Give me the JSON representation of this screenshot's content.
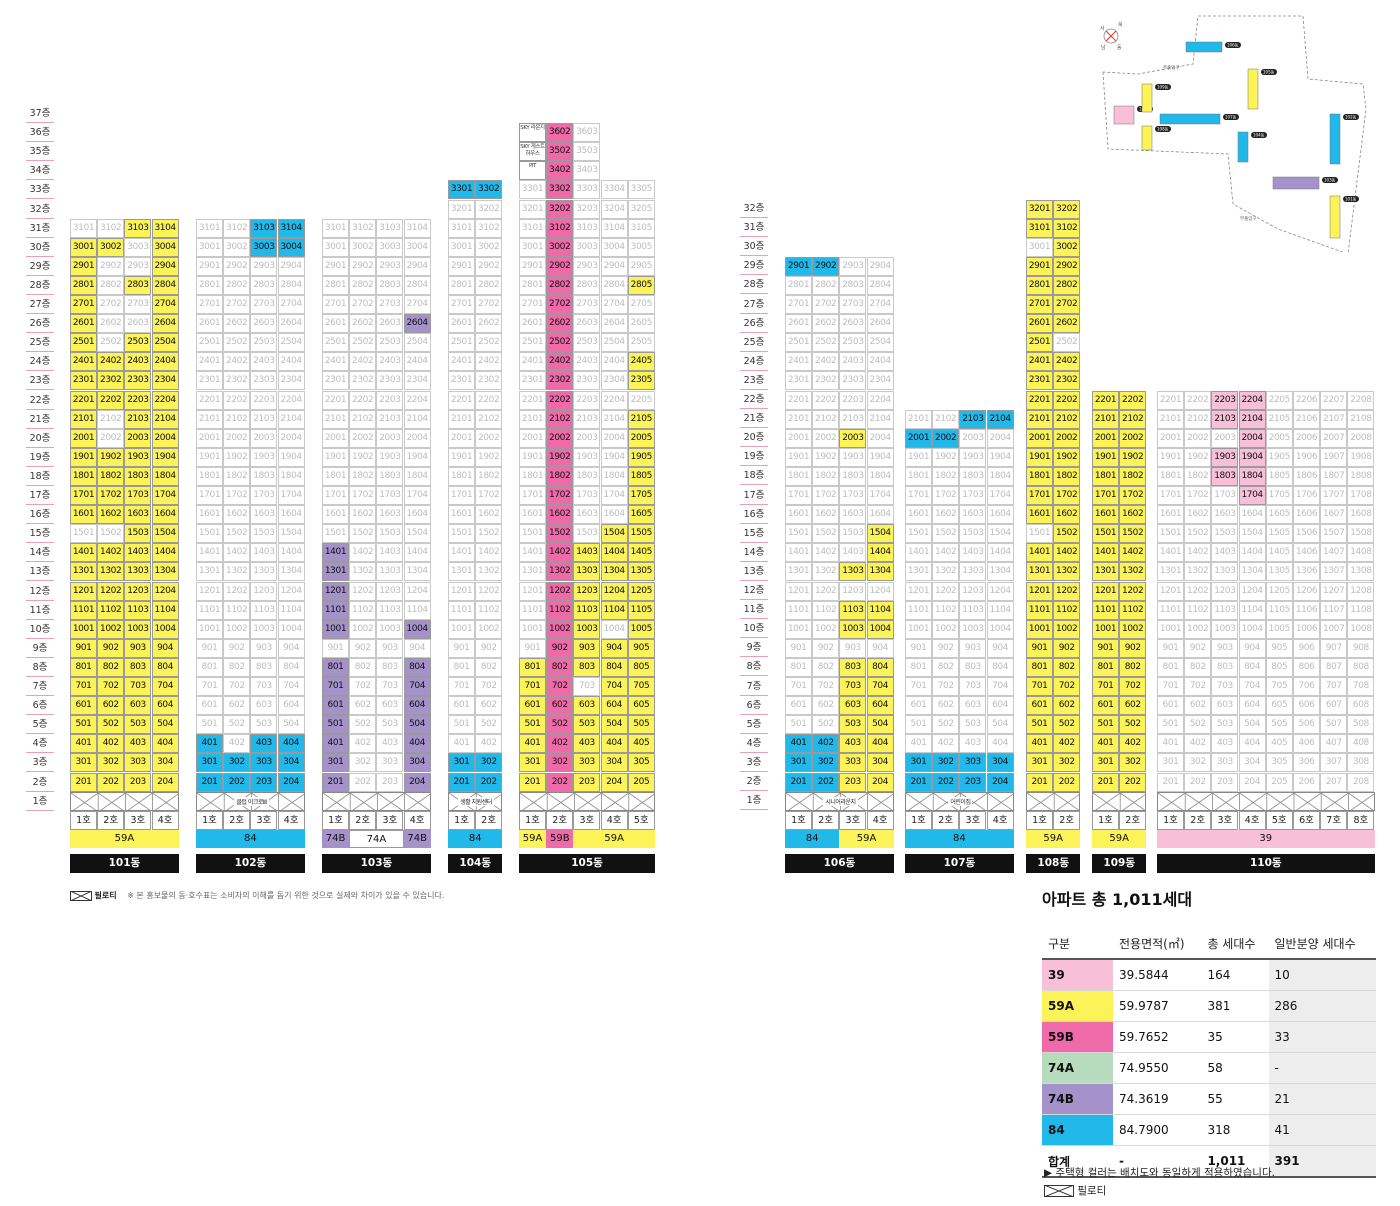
{
  "colors": {
    "39": "#f7bfd8",
    "59A": "#fbf357",
    "59B": "#ef6aa9",
    "74A": "#b6dcbd",
    "74B": "#a592cb",
    "84": "#21b9ea"
  },
  "left_floors": [
    "37층",
    "36층",
    "35층",
    "34층",
    "33층",
    "32층",
    "31층",
    "30층",
    "29층",
    "28층",
    "27층",
    "26층",
    "25층",
    "24층",
    "23층",
    "22층",
    "21층",
    "20층",
    "19층",
    "18층",
    "17층",
    "16층",
    "15층",
    "14층",
    "13층",
    "12층",
    "11층",
    "10층",
    "9층",
    "8층",
    "7층",
    "6층",
    "5층",
    "4층",
    "3층",
    "2층",
    "1층"
  ],
  "right_floors": [
    "32층",
    "31층",
    "30층",
    "29층",
    "28층",
    "27층",
    "26층",
    "25층",
    "24층",
    "23층",
    "22층",
    "21층",
    "20층",
    "19층",
    "18층",
    "17층",
    "16층",
    "15층",
    "14층",
    "13층",
    "12층",
    "11층",
    "10층",
    "9층",
    "8층",
    "7층",
    "6층",
    "5층",
    "4층",
    "3층",
    "2층",
    "1층"
  ],
  "buildings": [
    {
      "name": "101동",
      "hos": [
        "1호",
        "2호",
        "3호",
        "4호"
      ],
      "types": [
        {
          "label": "59A",
          "span": 4,
          "color": "59A"
        }
      ],
      "pilotis_label": "",
      "colored": {
        "1": "3,4",
        "2": "1,2,3,4",
        "3": "1,2,3,4",
        "4": "1,2,3,4",
        "5": "1,2,3,4",
        "6": "1,2,3,4",
        "7": "1,2,3,4",
        "8": "1,2,3,4",
        "9": "1,2,3,4",
        "10": "1,2,3,4",
        "11": "1,2,3,4",
        "12": "1,2,3,4",
        "13": "1,2,3,4",
        "14": "1,2,3,4",
        "15": "3,4",
        "16": "1,2,3,4",
        "17": "1,2,3,4",
        "18": "1,2,3,4",
        "19": "1,2,3,4",
        "20": "1,3,4",
        "21": "1,3,4",
        "22": "1,2,3,4",
        "23": "1,2,3,4",
        "24": "1,2,3,4",
        "25": "1,3,4",
        "26": "1,4",
        "27": "1,4",
        "28": "1,3,4",
        "29": "1,4",
        "30": "1,2,4",
        "31": "3,4"
      }
    },
    {
      "name": "102동",
      "hos": [
        "1호",
        "2호",
        "3호",
        "4호"
      ],
      "types": [
        {
          "label": "84",
          "span": 4,
          "color": "84"
        }
      ],
      "pilotis_label": "클럽 이크로Ⅲ",
      "colored": {
        "2": "1,2,3,4",
        "3": "1,2,3,4",
        "4": "1,3,4",
        "30": "3,4",
        "31": "3,4"
      }
    },
    {
      "name": "103동",
      "hos": [
        "1호",
        "2호",
        "3호",
        "4호"
      ],
      "types": [
        {
          "label": "74B",
          "span": 1,
          "color": "74B"
        },
        {
          "label": "74A",
          "span": 2,
          "color": "none"
        },
        {
          "label": "74B",
          "span": 1,
          "color": "74B"
        }
      ],
      "pilotis_label": "",
      "colored": {
        "2": "1,4",
        "3": "1,4",
        "4": "1,4",
        "5": "1,4",
        "6": "1,4",
        "7": "1,4",
        "8": "1,4",
        "10": "1,4",
        "11": "1",
        "12": "1",
        "13": "1",
        "14": "1",
        "26": "4"
      }
    },
    {
      "name": "104동",
      "hos": [
        "1호",
        "2호"
      ],
      "types": [
        {
          "label": "84",
          "span": 2,
          "color": "84"
        }
      ],
      "pilotis_label": "생활 지원센터",
      "colored": {
        "2": "1,2",
        "3": "1,2",
        "33": "1,2"
      }
    },
    {
      "name": "105동",
      "hos": [
        "1호",
        "2호",
        "3호",
        "4호",
        "5호"
      ],
      "types": [
        {
          "label": "59A",
          "span": 1,
          "color": "59A"
        },
        {
          "label": "59B",
          "span": 1,
          "color": "59B"
        },
        {
          "label": "59A",
          "span": 3,
          "color": "59A"
        }
      ],
      "pilotis_label": "",
      "colored": {
        "2": "1,2,3,4,5",
        "3": "1,2,3,4,5",
        "4": "1,2,3,4,5",
        "5": "1,2,3,4,5",
        "6": "1,2,3,4,5",
        "7": "1,2,4,5",
        "8": "1,2,3,4,5",
        "9": "2,3,4,5",
        "10": "2,3,5",
        "11": "2,3,4,5",
        "12": "2,3,4,5",
        "13": "2,3,4,5",
        "14": "2,3,4,5",
        "15": "2,4,5",
        "16": "2,5",
        "17": "2,5",
        "18": "2,5",
        "19": "2,5",
        "20": "2,5",
        "21": "2,5",
        "22": "2",
        "23": "2,5",
        "24": "2,5",
        "25": "2",
        "26": "2",
        "27": "2",
        "28": "2,5",
        "29": "2",
        "30": "2",
        "31": "2",
        "32": "2",
        "33": "2",
        "34": "2",
        "35": "2",
        "36": "2"
      },
      "top_labels": {
        "34": "PIT",
        "35": "SKY 게스트 하우스",
        "36": "SKY 라운지"
      }
    },
    {
      "name": "106동",
      "hos": [
        "1호",
        "2호",
        "3호",
        "4호"
      ],
      "types": [
        {
          "label": "84",
          "span": 2,
          "color": "84"
        },
        {
          "label": "59A",
          "span": 2,
          "color": "59A"
        }
      ],
      "pilotis_label": "시니어라운지",
      "colored": {
        "2": "1,2,3,4",
        "3": "1,2,3,4",
        "4": "1,2,3,4",
        "5": "3,4",
        "6": "3,4",
        "7": "3,4",
        "8": "3,4",
        "10": "3,4",
        "11": "3,4",
        "13": "3,4",
        "14": "4",
        "15": "4",
        "20": "3",
        "29": "1,2"
      }
    },
    {
      "name": "107동",
      "hos": [
        "1호",
        "2호",
        "3호",
        "4호"
      ],
      "types": [
        {
          "label": "84",
          "span": 4,
          "color": "84"
        }
      ],
      "pilotis_label": "어린이집",
      "colored": {
        "2": "1,2,3,4",
        "3": "1,2,3,4",
        "20": "1,2",
        "21": "3,4"
      }
    },
    {
      "name": "108동",
      "hos": [
        "1호",
        "2호"
      ],
      "types": [
        {
          "label": "59A",
          "span": 2,
          "color": "59A"
        }
      ],
      "pilotis_label": "",
      "colored": {
        "2": "1,2",
        "3": "1,2",
        "4": "1,2",
        "5": "1,2",
        "6": "1,2",
        "7": "1,2",
        "8": "1,2",
        "9": "1,2",
        "10": "1,2",
        "11": "1,2",
        "12": "1,2",
        "13": "1,2",
        "14": "1,2",
        "15": "2",
        "16": "1,2",
        "17": "1,2",
        "18": "1,2",
        "19": "1,2",
        "20": "1,2",
        "21": "1,2",
        "22": "1,2",
        "23": "1,2",
        "24": "1,2",
        "25": "1",
        "26": "1,2",
        "27": "1,2",
        "28": "1,2",
        "29": "1,2",
        "30": "2",
        "31": "1,2",
        "32": "1,2"
      }
    },
    {
      "name": "109동",
      "hos": [
        "1호",
        "2호"
      ],
      "types": [
        {
          "label": "59A",
          "span": 2,
          "color": "59A"
        }
      ],
      "pilotis_label": "",
      "colored": {
        "2": "1,2",
        "3": "1,2",
        "4": "1,2",
        "5": "1,2",
        "6": "1,2",
        "7": "1,2",
        "8": "1,2",
        "9": "1,2",
        "10": "1,2",
        "11": "1,2",
        "12": "1,2",
        "13": "1,2",
        "14": "1,2",
        "15": "1,2",
        "16": "1,2",
        "17": "1,2",
        "18": "1,2",
        "19": "1,2",
        "20": "1,2",
        "21": "1,2",
        "22": "1,2"
      }
    },
    {
      "name": "110동",
      "hos": [
        "1호",
        "2호",
        "3호",
        "4호",
        "5호",
        "6호",
        "7호",
        "8호"
      ],
      "types": [
        {
          "label": "39",
          "span": 8,
          "color": "39"
        }
      ],
      "pilotis_label": "",
      "colored": {
        "17": "4",
        "18": "3,4",
        "19": "3,4",
        "20": "4",
        "21": "3,4",
        "22": "3,4"
      }
    }
  ],
  "pilotis_note": "필로티",
  "disclaimer": "※ 본 홍보물의 동·호수표는 소비자의 이해를 돕기 위한 것으로 실제와 차이가 있을 수 있습니다.",
  "summary": {
    "title": "아파트 총 1,011세대",
    "headers": [
      "구분",
      "전용면적(㎡)",
      "총 세대수",
      "일반분양 세대수"
    ],
    "rows": [
      {
        "type": "39",
        "area": "39.5844",
        "total": "164",
        "general": "10"
      },
      {
        "type": "59A",
        "area": "59.9787",
        "total": "381",
        "general": "286"
      },
      {
        "type": "59B",
        "area": "59.7652",
        "total": "35",
        "general": "33"
      },
      {
        "type": "74A",
        "area": "74.9550",
        "total": "58",
        "general": "-"
      },
      {
        "type": "74B",
        "area": "74.3619",
        "total": "55",
        "general": "21"
      },
      {
        "type": "84",
        "area": "84.7900",
        "total": "318",
        "general": "41"
      }
    ],
    "sum": {
      "type": "합계",
      "area": "-",
      "total": "1,011",
      "general": "391"
    },
    "note1": "▶ 주택형 컬러는 배치도와 동일하게 적용하였습니다.",
    "note2": "필로티"
  },
  "map": {
    "compass": [
      "서",
      "북",
      "남",
      "동"
    ],
    "labels": [
      "106동",
      "105동",
      "110동",
      "109동",
      "107동",
      "108동",
      "104동",
      "102동",
      "103동",
      "101동"
    ],
    "entrances": [
      "주출입구",
      "부출입구"
    ]
  }
}
